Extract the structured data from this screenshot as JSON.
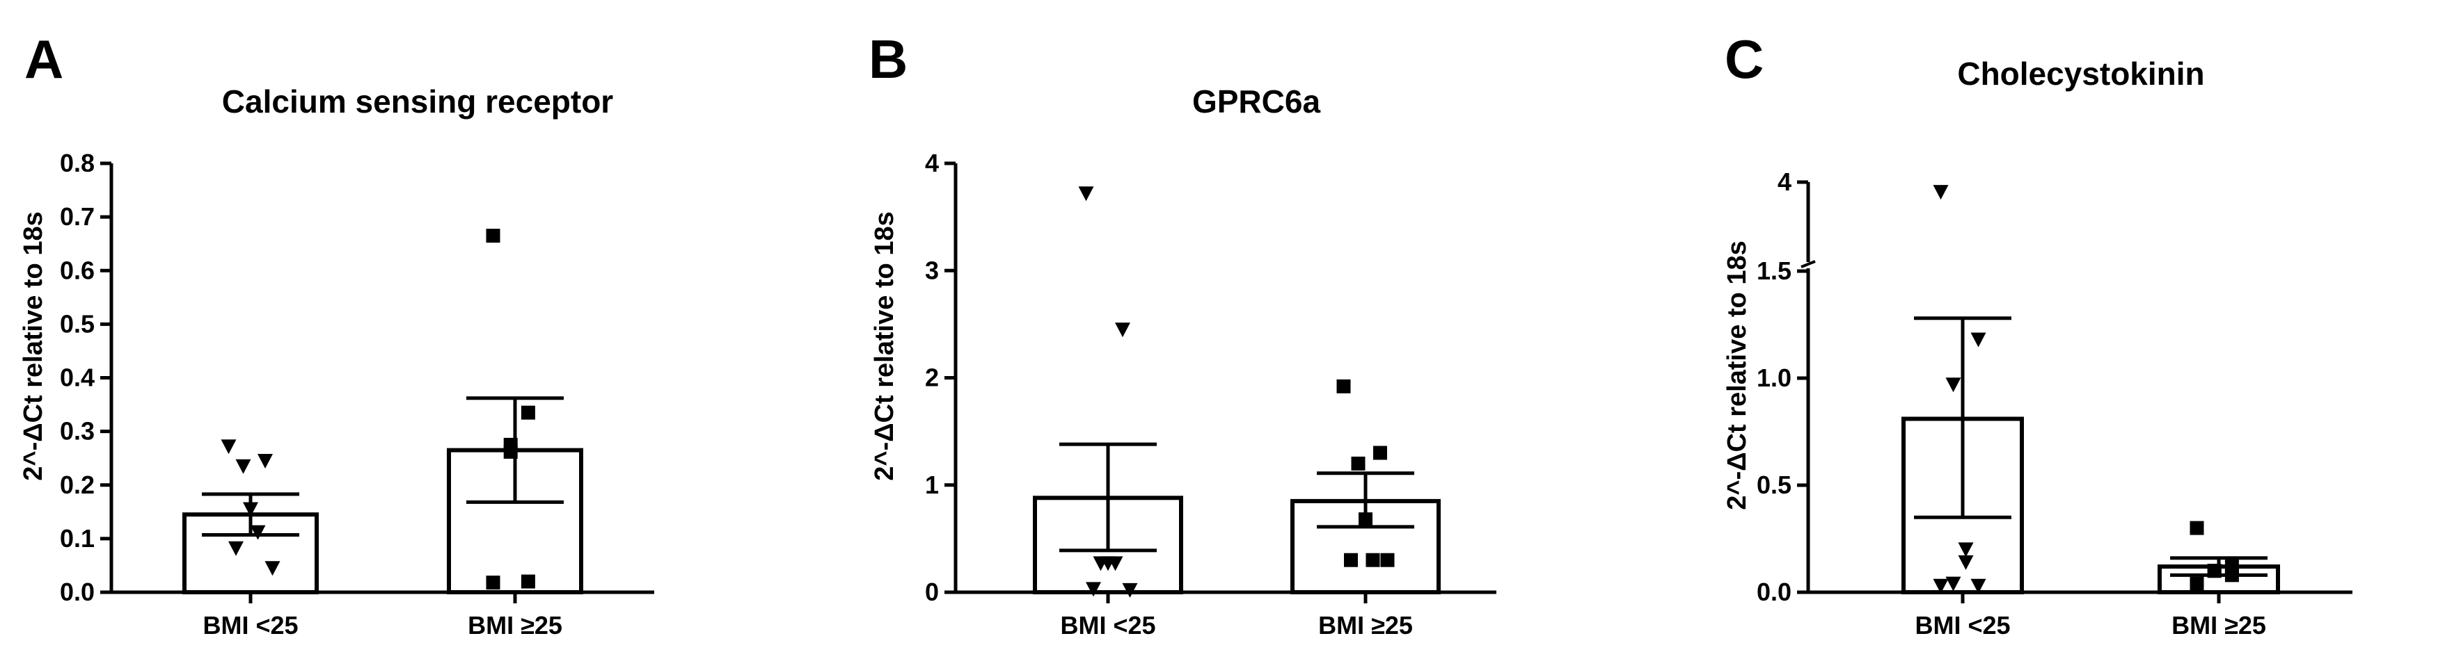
{
  "chart_data": [
    {
      "panel": "A",
      "type": "bar",
      "title": "Calcium sensing receptor",
      "ylabel": "2^-ΔCt relative to 18s",
      "ylim": [
        0,
        0.8
      ],
      "ytick_values": [
        0,
        0.1,
        0.2,
        0.3,
        0.4,
        0.5,
        0.6,
        0.7,
        0.8
      ],
      "ytick_labels": [
        "0.0",
        "0.1",
        "0.2",
        "0.3",
        "0.4",
        "0.5",
        "0.6",
        "0.7",
        "0.8"
      ],
      "categories": [
        "BMI <25",
        "BMI ≥25"
      ],
      "values": [
        0.145,
        0.265
      ],
      "error_bars": [
        [
          0.107,
          0.183
        ],
        [
          0.168,
          0.362
        ]
      ],
      "points": [
        {
          "marker": "triangle-down",
          "values": [
            0.272,
            0.245,
            0.235,
            0.155,
            0.112,
            0.082,
            0.045
          ]
        },
        {
          "marker": "square",
          "values": [
            0.665,
            0.335,
            0.275,
            0.262,
            0.02,
            0.018
          ]
        }
      ],
      "axis_break": null
    },
    {
      "panel": "B",
      "type": "bar",
      "title": "GPRC6a",
      "ylabel": "2^-ΔCt relative to 18s",
      "ylim": [
        0,
        4
      ],
      "ytick_values": [
        0,
        1,
        2,
        3,
        4
      ],
      "ytick_labels": [
        "0",
        "1",
        "2",
        "3",
        "4"
      ],
      "categories": [
        "BMI <25",
        "BMI ≥25"
      ],
      "values": [
        0.88,
        0.85
      ],
      "error_bars": [
        [
          0.39,
          1.38
        ],
        [
          0.61,
          1.11
        ]
      ],
      "points": [
        {
          "marker": "triangle-down",
          "values": [
            3.72,
            2.45,
            0.27,
            0.27,
            0.27,
            0.03,
            0.02
          ]
        },
        {
          "marker": "square",
          "values": [
            1.92,
            1.3,
            1.2,
            0.68,
            0.3,
            0.3,
            0.3
          ]
        }
      ],
      "axis_break": null
    },
    {
      "panel": "C",
      "type": "bar",
      "title": "Cholecystokinin",
      "ylabel": "2^-ΔCt relative to 18s",
      "ylim": [
        0,
        4
      ],
      "ytick_values": [
        0,
        0.5,
        1.0,
        1.5,
        4
      ],
      "ytick_labels": [
        "0.0",
        "0.5",
        "1.0",
        "1.5",
        "4"
      ],
      "categories": [
        "BMI <25",
        "BMI ≥25"
      ],
      "values": [
        0.81,
        0.12
      ],
      "error_bars": [
        [
          0.35,
          1.28
        ],
        [
          0.08,
          0.16
        ]
      ],
      "points": [
        {
          "marker": "triangle-down",
          "values": [
            3.9,
            1.18,
            0.97,
            0.2,
            0.14,
            0.04,
            0.03,
            0.03
          ]
        },
        {
          "marker": "square",
          "values": [
            0.3,
            0.12,
            0.1,
            0.1,
            0.08,
            0.04
          ]
        }
      ],
      "axis_break": {
        "lower_max": 1.5,
        "upper_label": 4
      }
    }
  ]
}
